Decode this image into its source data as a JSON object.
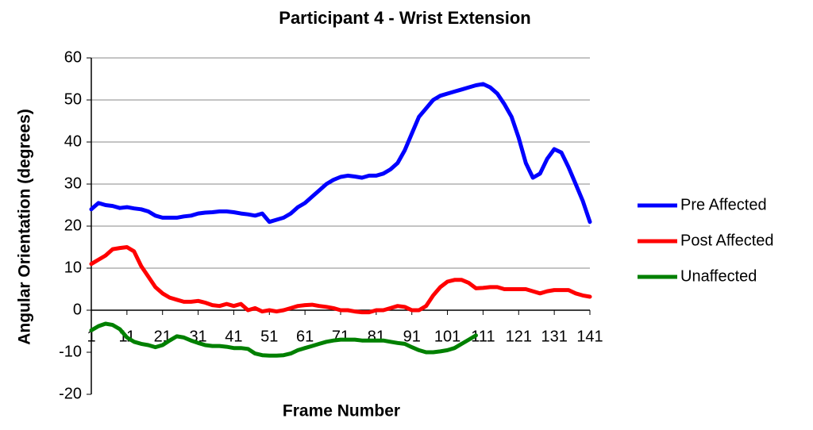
{
  "chart_data": {
    "type": "line",
    "title": "Participant 4 - Wrist Extension",
    "x_label": "Frame Number",
    "y_label": "Angular Orientation (degrees)",
    "x": [
      1,
      3,
      5,
      7,
      9,
      11,
      13,
      15,
      17,
      19,
      21,
      23,
      25,
      27,
      29,
      31,
      33,
      35,
      37,
      39,
      41,
      43,
      45,
      47,
      49,
      51,
      53,
      55,
      57,
      59,
      61,
      63,
      65,
      67,
      69,
      71,
      73,
      75,
      77,
      79,
      81,
      83,
      85,
      87,
      89,
      91,
      93,
      95,
      97,
      99,
      101,
      103,
      105,
      107,
      109,
      111,
      113,
      115,
      117,
      119,
      121,
      123,
      125,
      127,
      129,
      131,
      133,
      135,
      137,
      139,
      141
    ],
    "xlim": [
      1,
      141
    ],
    "xticks": [
      1,
      11,
      21,
      31,
      41,
      51,
      61,
      71,
      81,
      91,
      101,
      111,
      121,
      131,
      141
    ],
    "ylim": [
      -20,
      60
    ],
    "yticks": [
      -20,
      -10,
      0,
      10,
      20,
      30,
      40,
      50,
      60
    ],
    "grid": true,
    "legend": "right",
    "series": [
      {
        "name": "Pre Affected",
        "color": "#0000ff",
        "values": [
          24,
          25.5,
          25,
          24.8,
          24.3,
          24.5,
          24.2,
          24,
          23.5,
          22.5,
          22,
          22,
          22,
          22.3,
          22.5,
          23,
          23.2,
          23.3,
          23.5,
          23.5,
          23.3,
          23,
          22.8,
          22.5,
          23,
          21,
          21.5,
          22,
          23,
          24.5,
          25.5,
          27,
          28.5,
          30,
          31,
          31.7,
          32,
          31.8,
          31.5,
          32,
          32,
          32.5,
          33.5,
          35,
          38,
          42,
          46,
          48,
          50,
          51,
          51.5,
          52,
          52.5,
          53,
          53.5,
          53.8,
          53,
          51.5,
          49,
          46,
          41,
          35,
          31.5,
          32.5,
          36,
          38.3,
          37.5,
          34,
          30,
          26,
          21
        ]
      },
      {
        "name": "Post Affected",
        "color": "#ff0000",
        "values": [
          11,
          12,
          13,
          14.5,
          14.8,
          15,
          14,
          10.5,
          8,
          5.5,
          4,
          3,
          2.5,
          2,
          2,
          2.2,
          1.8,
          1.2,
          1,
          1.5,
          1,
          1.5,
          0,
          0.5,
          -0.3,
          0,
          -0.3,
          0,
          0.5,
          1,
          1.2,
          1.3,
          1,
          0.8,
          0.5,
          0,
          0,
          -0.3,
          -0.5,
          -0.5,
          0,
          0,
          0.5,
          1,
          0.8,
          0,
          0,
          1,
          3.5,
          5.5,
          6.8,
          7.2,
          7.2,
          6.5,
          5.2,
          5.3,
          5.5,
          5.5,
          5,
          5,
          5,
          5,
          4.5,
          4,
          4.5,
          4.8,
          4.8,
          4.8,
          4,
          3.5,
          3.2
        ]
      },
      {
        "name": "Unaffected",
        "color": "#008000",
        "values": [
          -4.8,
          -3.8,
          -3.2,
          -3.5,
          -4.5,
          -6.5,
          -7.5,
          -8,
          -8.3,
          -8.8,
          -8.3,
          -7.2,
          -6.2,
          -6.5,
          -7.2,
          -7.8,
          -8.3,
          -8.5,
          -8.5,
          -8.7,
          -9,
          -9,
          -9.2,
          -10.3,
          -10.7,
          -10.8,
          -10.8,
          -10.7,
          -10.3,
          -9.5,
          -9,
          -8.5,
          -8,
          -7.5,
          -7.2,
          -7,
          -7,
          -7,
          -7.2,
          -7.2,
          -7.2,
          -7.2,
          -7.5,
          -7.8,
          -8,
          -8.8,
          -9.5,
          -10,
          -10,
          -9.8,
          -9.5,
          -9,
          -8,
          -7,
          -6,
          null,
          null,
          null,
          null,
          null,
          null,
          null,
          null,
          null,
          null,
          null,
          null,
          null,
          null,
          null,
          null
        ]
      }
    ]
  }
}
